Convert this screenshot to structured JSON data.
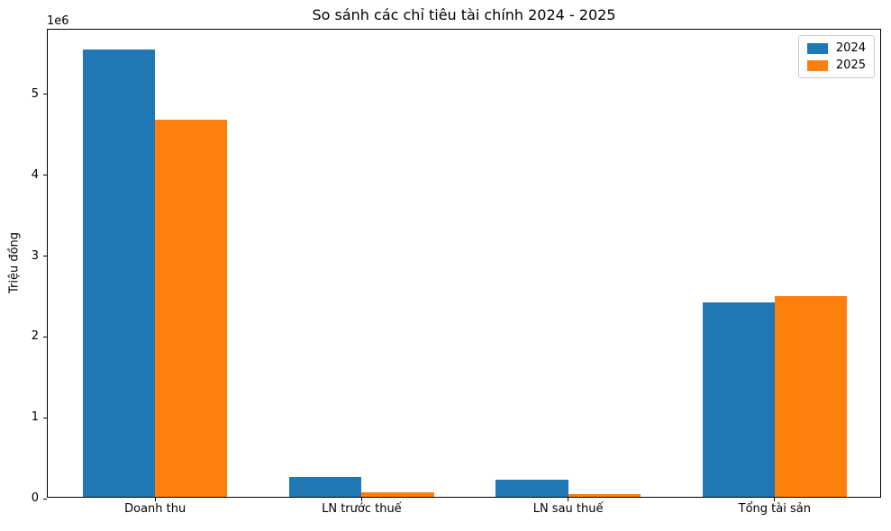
{
  "chart_data": {
    "type": "bar",
    "title": "So sánh các chỉ tiêu tài chính 2024 - 2025",
    "ylabel": "Triệu đồng",
    "xlabel": "",
    "offset_text": "1e6",
    "categories": [
      "Doanh thu",
      "LN trước thuế",
      "LN sau thuế",
      "Tổng tài sản"
    ],
    "series": [
      {
        "name": "2024",
        "color": "#1f77b4",
        "values": [
          5530000,
          250000,
          210000,
          2400000
        ]
      },
      {
        "name": "2025",
        "color": "#ff7f0e",
        "values": [
          4670000,
          55000,
          35000,
          2480000
        ]
      }
    ],
    "ylim": [
      0,
      5800000
    ],
    "xlim": [
      -0.52,
      3.52
    ],
    "yticks": [
      0,
      1000000,
      2000000,
      3000000,
      4000000,
      5000000
    ],
    "ytick_labels": [
      "0",
      "1",
      "2",
      "3",
      "4",
      "5"
    ],
    "bar_width_units": 0.35,
    "grid": false,
    "legend_position": "upper right",
    "legend_entries": [
      "2024",
      "2025"
    ]
  }
}
